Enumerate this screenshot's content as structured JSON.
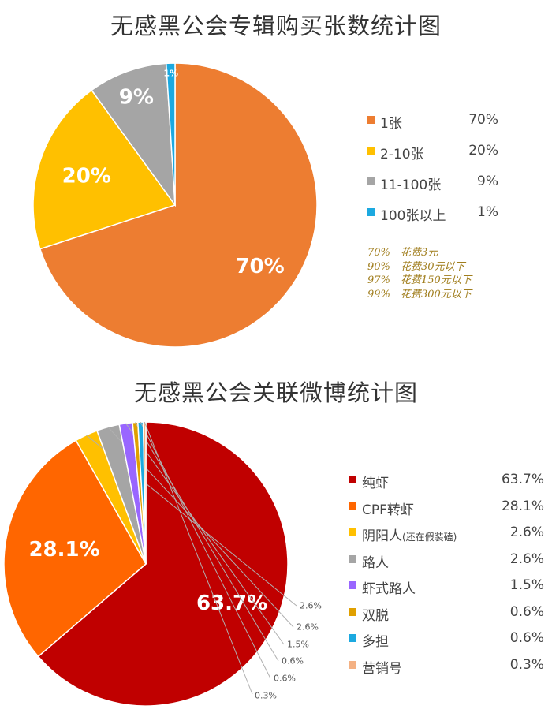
{
  "chart_data": [
    {
      "type": "pie",
      "title": "无感黑公会专辑购买张数统计图",
      "slices": [
        {
          "label": "1张",
          "value": 70,
          "display": "70%",
          "color": "#ED7D31"
        },
        {
          "label": "2-10张",
          "value": 20,
          "display": "20%",
          "color": "#FFC000"
        },
        {
          "label": "11-100张",
          "value": 9,
          "display": "9%",
          "color": "#A5A5A5"
        },
        {
          "label": "100张以上",
          "value": 1,
          "display": "1%",
          "color": "#1CA9E0"
        }
      ],
      "legend_position": "right",
      "annotations": [
        {
          "pct": "70%",
          "text": "花费3元"
        },
        {
          "pct": "90%",
          "text": "花费30元以下"
        },
        {
          "pct": "97%",
          "text": "花费150元以下"
        },
        {
          "pct": "99%",
          "text": "花费300元以下"
        }
      ]
    },
    {
      "type": "pie",
      "title": "无感黑公会关联微博统计图",
      "slices": [
        {
          "label": "纯虾",
          "value": 63.7,
          "display": "63.7%",
          "color": "#C00000"
        },
        {
          "label": "CPF转虾",
          "value": 28.1,
          "display": "28.1%",
          "color": "#FF6600"
        },
        {
          "label": "阴阳人",
          "label_note": "(还在假装磕)",
          "value": 2.6,
          "display": "2.6%",
          "color": "#FFC000"
        },
        {
          "label": "路人",
          "value": 2.6,
          "display": "2.6%",
          "color": "#A5A5A5"
        },
        {
          "label": "虾式路人",
          "value": 1.5,
          "display": "1.5%",
          "color": "#9966FF"
        },
        {
          "label": "双脱",
          "value": 0.6,
          "display": "0.6%",
          "color": "#E0A000"
        },
        {
          "label": "多担",
          "value": 0.6,
          "display": "0.6%",
          "color": "#1CA9E0"
        },
        {
          "label": "营销号",
          "value": 0.3,
          "display": "0.3%",
          "color": "#F4B183"
        }
      ],
      "legend_position": "right"
    }
  ]
}
